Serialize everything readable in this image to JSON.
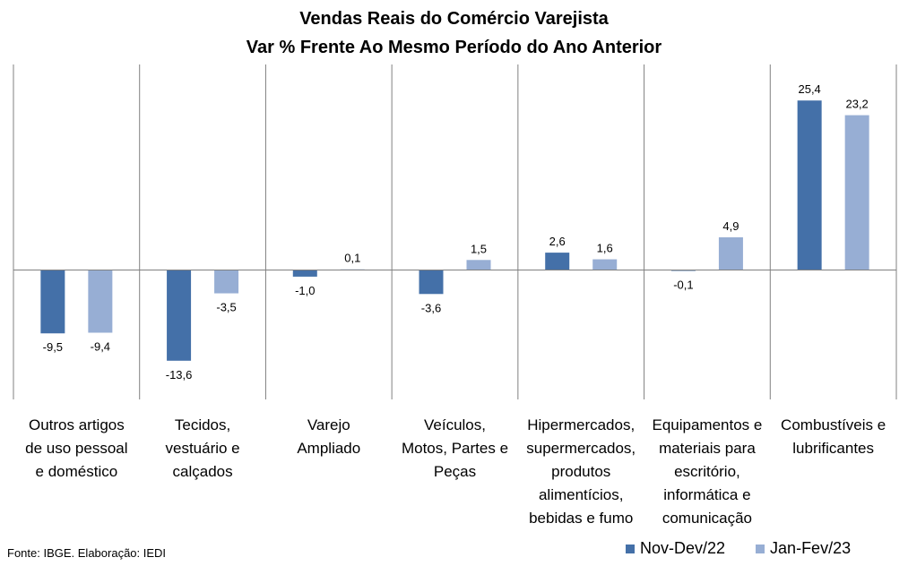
{
  "chart_data": {
    "type": "bar",
    "title": "Vendas Reais do Comércio Varejista",
    "subtitle": "Var % Frente Ao Mesmo Período do Ano Anterior",
    "categories": [
      "Outros artigos de uso pessoal e doméstico",
      "Tecidos, vestuário e calçados",
      "Varejo Ampliado",
      "Veículos, Motos, Partes e Peças",
      "Hipermercados, supermercados, produtos alimentícios, bebidas e fumo",
      "Equipamentos e materiais para escritório, informática e comunicação",
      "Combustíveis e lubrificantes"
    ],
    "category_lines": [
      [
        "Outros artigos",
        "de uso pessoal",
        "e doméstico"
      ],
      [
        "Tecidos,",
        "vestuário e",
        "calçados"
      ],
      [
        "Varejo",
        "Ampliado"
      ],
      [
        "Veículos,",
        "Motos, Partes e",
        "Peças"
      ],
      [
        "Hipermercados,",
        "supermercados,",
        "produtos",
        "alimentícios,",
        "bebidas e fumo"
      ],
      [
        "Equipamentos e",
        "materiais para",
        "escritório,",
        "informática e",
        "comunicação"
      ],
      [
        "Combustíveis e",
        "lubrificantes"
      ]
    ],
    "series": [
      {
        "name": "Nov-Dev/22",
        "color": "#4470a8",
        "values": [
          -9.5,
          -13.6,
          -1.0,
          -3.6,
          2.6,
          -0.1,
          25.4
        ],
        "labels": [
          "-9,5",
          "-13,6",
          "-1,0",
          "-3,6",
          "2,6",
          "-0,1",
          "25,4"
        ]
      },
      {
        "name": "Jan-Fev/23",
        "color": "#97aed4",
        "values": [
          -9.4,
          -3.5,
          0.1,
          1.5,
          1.6,
          4.9,
          23.2
        ],
        "labels": [
          "-9,4",
          "-3,5",
          "0,1",
          "1,5",
          "1,6",
          "4,9",
          "23,2"
        ]
      }
    ],
    "ylim": [
      -19.4,
      30.8
    ],
    "grid": false,
    "legend_position": "bottom-right",
    "source": "Fonte: IBGE. Elaboração: IEDI"
  }
}
